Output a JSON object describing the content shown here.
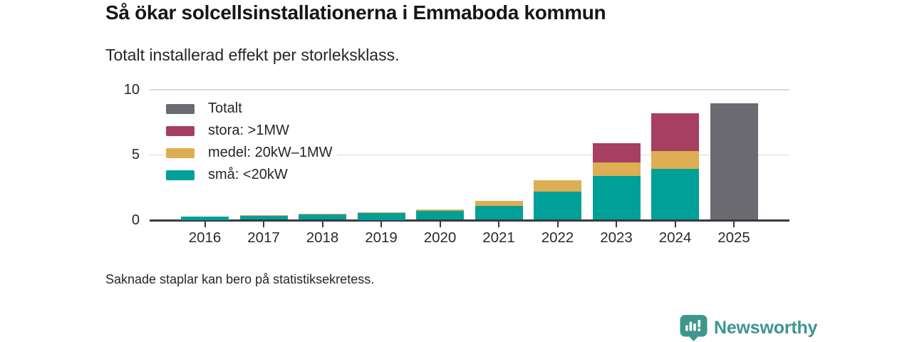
{
  "header": {
    "title": "Så ökar solcellsinstallationerna i Emmaboda kommun",
    "subtitle": "Totalt installerad effekt per storleksklass."
  },
  "footnote": "Saknade staplar kan bero på statistiksekretess.",
  "branding": {
    "name": "Newsworthy",
    "icon": "bar-chart-speech-bubble-icon",
    "color": "#3e968c"
  },
  "colors": {
    "grid": "#d9d9d9",
    "axis": "#3a3a3e",
    "text": "#26262a"
  },
  "chart_data": {
    "type": "bar",
    "stacked": true,
    "title": "Så ökar solcellsinstallationerna i Emmaboda kommun",
    "subtitle": "Totalt installerad effekt per storleksklass.",
    "categories": [
      "2016",
      "2017",
      "2018",
      "2019",
      "2020",
      "2021",
      "2022",
      "2023",
      "2024",
      "2025"
    ],
    "series": [
      {
        "name": "Totalt",
        "color": "#6b6a70",
        "values": [
          0,
          0,
          0,
          0,
          0,
          0,
          0,
          0,
          0,
          8.95
        ]
      },
      {
        "name": "stora: >1MW",
        "color": "#a63f61",
        "values": [
          0,
          0,
          0,
          0,
          0,
          0,
          0,
          1.5,
          2.9,
          0
        ]
      },
      {
        "name": "medel: 20kW–1MW",
        "color": "#ddae53",
        "values": [
          0,
          0.07,
          0.05,
          0.08,
          0.12,
          0.4,
          0.9,
          1.05,
          1.4,
          0
        ]
      },
      {
        "name": "små: <20kW",
        "color": "#00a098",
        "values": [
          0.25,
          0.3,
          0.4,
          0.5,
          0.7,
          1.05,
          2.15,
          3.35,
          3.9,
          0
        ]
      }
    ],
    "xlabel": "",
    "ylabel": "",
    "ylim": [
      0,
      10
    ],
    "yticks": [
      0,
      5,
      10
    ],
    "grid": true,
    "legend_position": "top-left-inside"
  }
}
